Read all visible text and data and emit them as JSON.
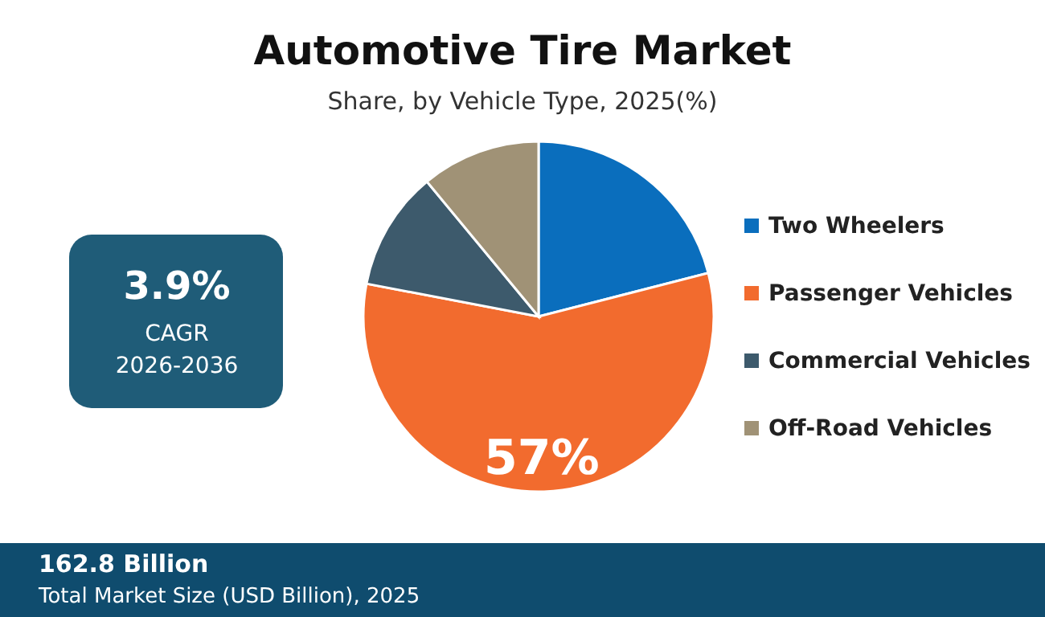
{
  "chart_data": {
    "type": "pie",
    "title": "Automotive Tire Market",
    "subtitle": "Share, by Vehicle Type, 2025(%)",
    "categories": [
      "Two Wheelers",
      "Passenger Vehicles",
      "Commercial Vehicles",
      "Off-Road Vehicles"
    ],
    "values": [
      21,
      57,
      11,
      11
    ],
    "colors": [
      "#0a6ebd",
      "#f26b2e",
      "#3d5a6c",
      "#a09276"
    ],
    "value_labels": [
      null,
      "57%",
      null,
      null
    ],
    "legend": "right",
    "annotations": [
      "3.9%",
      "CAGR",
      "2026-2036",
      "162.8 Billion",
      "Total Market Size (USD Billion), 2025"
    ]
  }
}
